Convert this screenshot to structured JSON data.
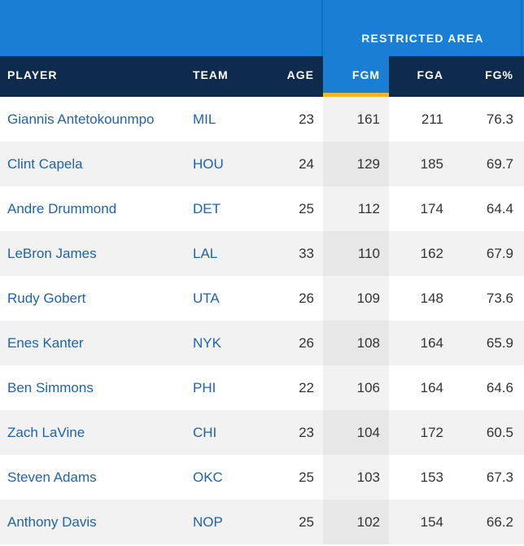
{
  "group_header": {
    "title": "RESTRICTED AREA"
  },
  "columns": {
    "player": "PLAYER",
    "team": "TEAM",
    "age": "AGE",
    "fgm": "FGM",
    "fga": "FGA",
    "fgpct": "FG%"
  },
  "colors": {
    "group_band": "#1a7fd4",
    "header_dark": "#0e2a4c",
    "sort_accent": "#f5b51d",
    "link": "#1f63a8"
  },
  "sorted_column": "FGM",
  "rows": [
    {
      "player": "Giannis Antetokounmpo",
      "team": "MIL",
      "age": "23",
      "fgm": "161",
      "fga": "211",
      "fgpct": "76.3"
    },
    {
      "player": "Clint Capela",
      "team": "HOU",
      "age": "24",
      "fgm": "129",
      "fga": "185",
      "fgpct": "69.7"
    },
    {
      "player": "Andre Drummond",
      "team": "DET",
      "age": "25",
      "fgm": "112",
      "fga": "174",
      "fgpct": "64.4"
    },
    {
      "player": "LeBron James",
      "team": "LAL",
      "age": "33",
      "fgm": "110",
      "fga": "162",
      "fgpct": "67.9"
    },
    {
      "player": "Rudy Gobert",
      "team": "UTA",
      "age": "26",
      "fgm": "109",
      "fga": "148",
      "fgpct": "73.6"
    },
    {
      "player": "Enes Kanter",
      "team": "NYK",
      "age": "26",
      "fgm": "108",
      "fga": "164",
      "fgpct": "65.9"
    },
    {
      "player": "Ben Simmons",
      "team": "PHI",
      "age": "22",
      "fgm": "106",
      "fga": "164",
      "fgpct": "64.6"
    },
    {
      "player": "Zach LaVine",
      "team": "CHI",
      "age": "23",
      "fgm": "104",
      "fga": "172",
      "fgpct": "60.5"
    },
    {
      "player": "Steven Adams",
      "team": "OKC",
      "age": "25",
      "fgm": "103",
      "fga": "153",
      "fgpct": "67.3"
    },
    {
      "player": "Anthony Davis",
      "team": "NOP",
      "age": "25",
      "fgm": "102",
      "fga": "154",
      "fgpct": "66.2"
    }
  ]
}
